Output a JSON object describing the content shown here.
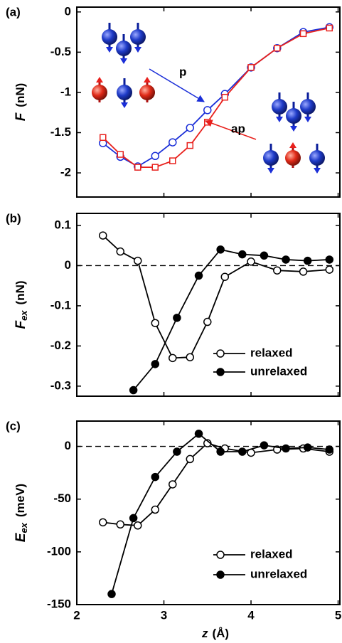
{
  "chart_data": [
    {
      "type": "line",
      "panel_label": "(a)",
      "y_label": {
        "symbol": "F",
        "unit": "(nN)"
      },
      "xlim": [
        2,
        5.02
      ],
      "xticks": [
        2,
        3,
        4,
        5
      ],
      "ylim": [
        -2.3,
        0.06
      ],
      "yticks": [
        0,
        -0.5,
        -1,
        -1.5,
        -2
      ],
      "legend": false,
      "zero_line": false,
      "series": [
        {
          "name": "p",
          "color": "#1a2ed8",
          "marker": "circle",
          "marker_filled": false,
          "x": [
            2.3,
            2.5,
            2.7,
            2.9,
            3.1,
            3.3,
            3.5,
            3.7,
            4.0,
            4.3,
            4.6,
            4.9
          ],
          "values": [
            -1.63,
            -1.8,
            -1.92,
            -1.79,
            -1.62,
            -1.44,
            -1.22,
            -1.02,
            -0.69,
            -0.45,
            -0.25,
            -0.19
          ]
        },
        {
          "name": "ap",
          "color": "#e8201c",
          "marker": "square",
          "marker_filled": false,
          "x": [
            2.3,
            2.5,
            2.7,
            2.9,
            3.1,
            3.3,
            3.5,
            3.7,
            4.0,
            4.3,
            4.6,
            4.9
          ],
          "values": [
            -1.56,
            -1.77,
            -1.93,
            -1.93,
            -1.85,
            -1.66,
            -1.37,
            -1.06,
            -0.69,
            -0.45,
            -0.27,
            -0.2
          ]
        }
      ]
    },
    {
      "type": "line",
      "panel_label": "(b)",
      "y_label": {
        "symbol": "F",
        "subscript": "ex",
        "unit": "(nN)"
      },
      "xlim": [
        2,
        5.02
      ],
      "xticks": [
        2,
        3,
        4,
        5
      ],
      "ylim": [
        -0.325,
        0.13
      ],
      "yticks": [
        0.1,
        0,
        -0.1,
        -0.2,
        -0.3
      ],
      "legend": "lower right",
      "zero_line": true,
      "series": [
        {
          "name": "relaxed",
          "color": "#000000",
          "marker": "circle",
          "marker_filled": false,
          "x": [
            2.3,
            2.5,
            2.7,
            2.9,
            3.1,
            3.3,
            3.5,
            3.7,
            4.0,
            4.3,
            4.6,
            4.9
          ],
          "values": [
            0.075,
            0.035,
            0.012,
            -0.143,
            -0.23,
            -0.228,
            -0.14,
            -0.028,
            0.01,
            -0.012,
            -0.015,
            -0.01
          ]
        },
        {
          "name": "unrelaxed",
          "color": "#000000",
          "marker": "circle",
          "marker_filled": true,
          "x": [
            2.65,
            2.9,
            3.15,
            3.4,
            3.65,
            3.9,
            4.15,
            4.4,
            4.65,
            4.9
          ],
          "values": [
            -0.31,
            -0.245,
            -0.13,
            -0.025,
            0.04,
            0.028,
            0.025,
            0.015,
            0.012,
            0.015
          ]
        }
      ]
    },
    {
      "type": "line",
      "panel_label": "(c)",
      "y_label": {
        "symbol": "E",
        "subscript": "ex",
        "unit": "(meV)"
      },
      "x_label": {
        "symbol": "z",
        "unit": "(Å)"
      },
      "xlim": [
        2,
        5.02
      ],
      "xticks": [
        2,
        3,
        4,
        5
      ],
      "ylim": [
        -150,
        24
      ],
      "yticks": [
        0,
        -50,
        -100,
        -150
      ],
      "legend": "lower right",
      "zero_line": true,
      "series": [
        {
          "name": "relaxed",
          "color": "#000000",
          "marker": "circle",
          "marker_filled": false,
          "x": [
            2.3,
            2.5,
            2.7,
            2.9,
            3.1,
            3.3,
            3.5,
            3.7,
            4.0,
            4.3,
            4.6,
            4.9
          ],
          "values": [
            -72,
            -74,
            -75,
            -60,
            -36,
            -12,
            3,
            -2,
            -6,
            -3,
            -2,
            -5
          ]
        },
        {
          "name": "unrelaxed",
          "color": "#000000",
          "marker": "circle",
          "marker_filled": true,
          "x": [
            2.4,
            2.65,
            2.9,
            3.15,
            3.4,
            3.65,
            3.9,
            4.15,
            4.4,
            4.65,
            4.9
          ],
          "values": [
            -140,
            -68,
            -29,
            -5,
            12,
            -5,
            -5,
            1,
            -2,
            -1,
            -3
          ]
        }
      ]
    }
  ]
}
